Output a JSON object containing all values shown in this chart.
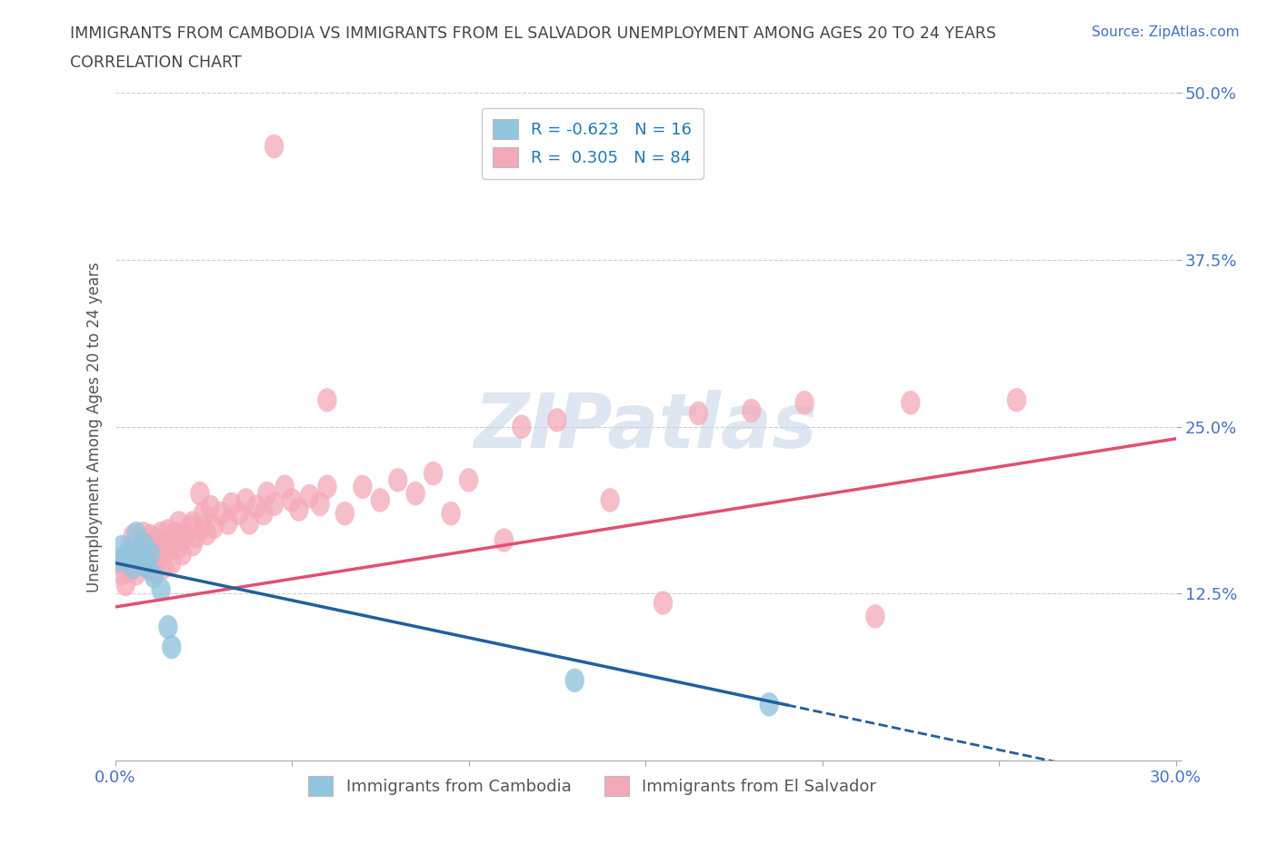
{
  "title_line1": "IMMIGRANTS FROM CAMBODIA VS IMMIGRANTS FROM EL SALVADOR UNEMPLOYMENT AMONG AGES 20 TO 24 YEARS",
  "title_line2": "CORRELATION CHART",
  "source_text": "Source: ZipAtlas.com",
  "ylabel": "Unemployment Among Ages 20 to 24 years",
  "xlim": [
    0.0,
    0.3
  ],
  "ylim": [
    0.0,
    0.5
  ],
  "xticks": [
    0.0,
    0.05,
    0.1,
    0.15,
    0.2,
    0.25,
    0.3
  ],
  "yticks": [
    0.0,
    0.125,
    0.25,
    0.375,
    0.5
  ],
  "cambodia_color": "#92C5DE",
  "el_salvador_color": "#F4A9B8",
  "cambodia_line_color": "#2060A0",
  "el_salvador_line_color": "#E05070",
  "cambodia_R": -0.623,
  "cambodia_N": 16,
  "el_salvador_R": 0.305,
  "el_salvador_N": 84,
  "legend_text_color": "#1F77B4",
  "background_color": "#FFFFFF",
  "watermark_text": "ZIPatlas",
  "grid_color": "#CCCCCC",
  "title_color": "#444444",
  "source_color": "#4472C4",
  "ytick_color": "#4472C4",
  "xtick_color": "#4472C4",
  "cambodia_scatter": [
    [
      0.001,
      0.15
    ],
    [
      0.002,
      0.16
    ],
    [
      0.004,
      0.155
    ],
    [
      0.005,
      0.145
    ],
    [
      0.006,
      0.17
    ],
    [
      0.007,
      0.155
    ],
    [
      0.008,
      0.148
    ],
    [
      0.008,
      0.162
    ],
    [
      0.009,
      0.145
    ],
    [
      0.01,
      0.155
    ],
    [
      0.011,
      0.138
    ],
    [
      0.013,
      0.128
    ],
    [
      0.015,
      0.1
    ],
    [
      0.016,
      0.085
    ],
    [
      0.13,
      0.06
    ],
    [
      0.185,
      0.042
    ]
  ],
  "el_salvador_scatter": [
    [
      0.001,
      0.148
    ],
    [
      0.002,
      0.14
    ],
    [
      0.003,
      0.15
    ],
    [
      0.003,
      0.132
    ],
    [
      0.004,
      0.158
    ],
    [
      0.004,
      0.142
    ],
    [
      0.005,
      0.168
    ],
    [
      0.005,
      0.145
    ],
    [
      0.006,
      0.155
    ],
    [
      0.006,
      0.14
    ],
    [
      0.007,
      0.162
    ],
    [
      0.007,
      0.148
    ],
    [
      0.008,
      0.17
    ],
    [
      0.008,
      0.152
    ],
    [
      0.009,
      0.145
    ],
    [
      0.009,
      0.16
    ],
    [
      0.01,
      0.155
    ],
    [
      0.01,
      0.168
    ],
    [
      0.01,
      0.145
    ],
    [
      0.011,
      0.158
    ],
    [
      0.011,
      0.142
    ],
    [
      0.012,
      0.165
    ],
    [
      0.012,
      0.15
    ],
    [
      0.013,
      0.17
    ],
    [
      0.013,
      0.155
    ],
    [
      0.014,
      0.162
    ],
    [
      0.014,
      0.145
    ],
    [
      0.015,
      0.172
    ],
    [
      0.015,
      0.158
    ],
    [
      0.016,
      0.165
    ],
    [
      0.016,
      0.148
    ],
    [
      0.017,
      0.17
    ],
    [
      0.018,
      0.16
    ],
    [
      0.018,
      0.178
    ],
    [
      0.019,
      0.155
    ],
    [
      0.019,
      0.165
    ],
    [
      0.02,
      0.168
    ],
    [
      0.021,
      0.175
    ],
    [
      0.022,
      0.162
    ],
    [
      0.022,
      0.178
    ],
    [
      0.023,
      0.168
    ],
    [
      0.024,
      0.2
    ],
    [
      0.025,
      0.175
    ],
    [
      0.025,
      0.185
    ],
    [
      0.026,
      0.17
    ],
    [
      0.027,
      0.19
    ],
    [
      0.028,
      0.175
    ],
    [
      0.03,
      0.185
    ],
    [
      0.032,
      0.178
    ],
    [
      0.033,
      0.192
    ],
    [
      0.035,
      0.185
    ],
    [
      0.037,
      0.195
    ],
    [
      0.038,
      0.178
    ],
    [
      0.04,
      0.19
    ],
    [
      0.042,
      0.185
    ],
    [
      0.043,
      0.2
    ],
    [
      0.045,
      0.192
    ],
    [
      0.045,
      0.46
    ],
    [
      0.048,
      0.205
    ],
    [
      0.05,
      0.195
    ],
    [
      0.052,
      0.188
    ],
    [
      0.055,
      0.198
    ],
    [
      0.058,
      0.192
    ],
    [
      0.06,
      0.205
    ],
    [
      0.06,
      0.27
    ],
    [
      0.065,
      0.185
    ],
    [
      0.07,
      0.205
    ],
    [
      0.075,
      0.195
    ],
    [
      0.08,
      0.21
    ],
    [
      0.085,
      0.2
    ],
    [
      0.09,
      0.215
    ],
    [
      0.095,
      0.185
    ],
    [
      0.1,
      0.21
    ],
    [
      0.11,
      0.165
    ],
    [
      0.115,
      0.25
    ],
    [
      0.125,
      0.255
    ],
    [
      0.14,
      0.195
    ],
    [
      0.155,
      0.118
    ],
    [
      0.165,
      0.26
    ],
    [
      0.18,
      0.262
    ],
    [
      0.195,
      0.268
    ],
    [
      0.215,
      0.108
    ],
    [
      0.225,
      0.268
    ],
    [
      0.255,
      0.27
    ]
  ]
}
